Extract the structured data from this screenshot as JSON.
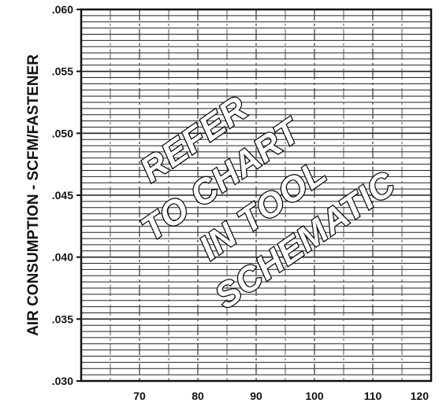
{
  "chart_data": {
    "type": "line",
    "title": "",
    "xlabel": "",
    "ylabel": "AIR CONSUMPTION - SCFM/FASTENER",
    "xlim": [
      60,
      120
    ],
    "ylim": [
      0.03,
      0.06
    ],
    "x_ticks": [
      70,
      80,
      90,
      100,
      110,
      120
    ],
    "x_tick_labels": [
      "70",
      "80",
      "90",
      "100",
      "110",
      "120"
    ],
    "y_ticks": [
      0.06,
      0.055,
      0.05,
      0.045,
      0.04,
      0.035,
      0.03
    ],
    "y_tick_labels": [
      ".060",
      ".055",
      ".050",
      ".045",
      ".040",
      ".035",
      ".030"
    ],
    "grid": true,
    "series": [],
    "annotation_lines": [
      "REFER",
      "TO CHART",
      "IN TOOL",
      "SCHEMATIC"
    ],
    "colors": {
      "ink": "#111111",
      "background": "#ffffff"
    }
  }
}
